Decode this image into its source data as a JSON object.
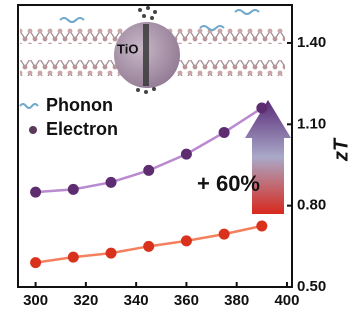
{
  "chart_data": {
    "type": "line",
    "x": [
      300,
      315,
      330,
      345,
      360,
      375,
      390
    ],
    "series": [
      {
        "color": "#5e2d70",
        "line_color": "#b98ad0",
        "values": [
          0.85,
          0.86,
          0.886,
          0.93,
          0.99,
          1.07,
          1.16
        ]
      },
      {
        "color": "#d8321c",
        "line_color": "#f4805e",
        "values": [
          0.59,
          0.61,
          0.625,
          0.65,
          0.67,
          0.695,
          0.725
        ]
      }
    ],
    "xlim": [
      293,
      402
    ],
    "ylim": [
      0.5,
      1.54
    ],
    "xticks": [
      300,
      320,
      340,
      360,
      380,
      400
    ],
    "yticks": [
      {
        "value": 0.5,
        "label": "0.50"
      },
      {
        "value": 0.8,
        "label": "0.80"
      },
      {
        "value": 1.1,
        "label": "1.10"
      },
      {
        "value": 1.4,
        "label": "1.40"
      }
    ],
    "y_axis_side": "right",
    "ylabel": "zT",
    "annotation": "+ 60%",
    "inset_label": "TiO",
    "legend_items": [
      "Phonon",
      "Electron"
    ]
  }
}
